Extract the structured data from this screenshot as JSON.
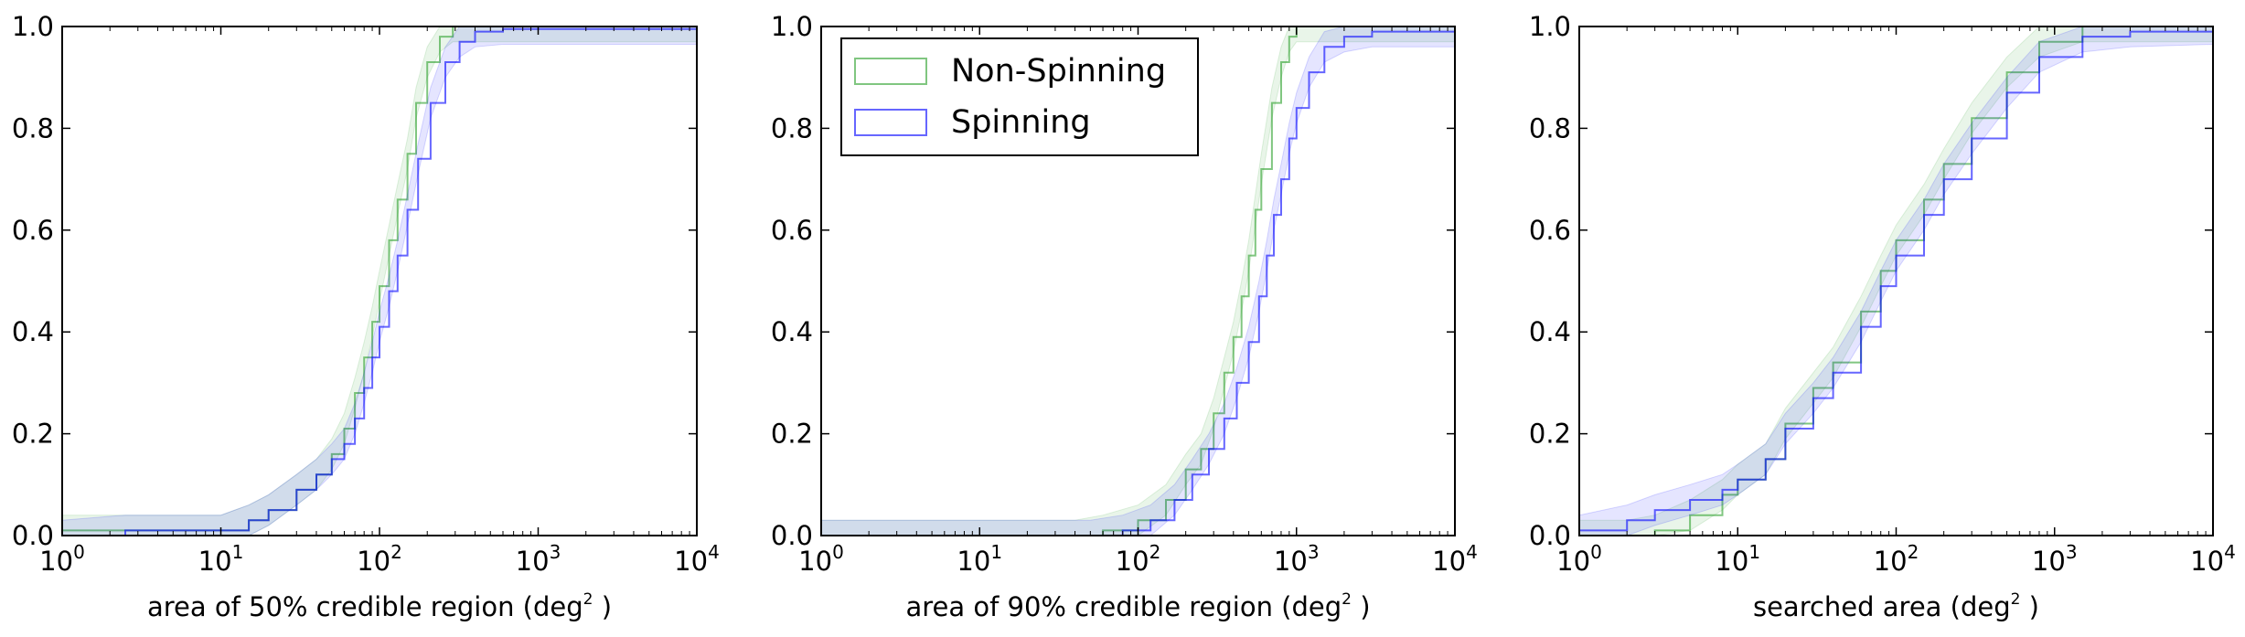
{
  "chart_data": [
    {
      "type": "line",
      "xscale": "log",
      "xlim": [
        1,
        10000
      ],
      "ylim": [
        0,
        1
      ],
      "xlabel": "area of 50% credible region (deg",
      "xlabel_sup": "2",
      "xlabel_end": " )",
      "xtick_base": "10",
      "xtick_exponents": [
        "0",
        "1",
        "2",
        "3",
        "4"
      ],
      "yticks": [
        "0.0",
        "0.2",
        "0.4",
        "0.6",
        "0.8",
        "1.0"
      ],
      "legend": false,
      "series": [
        {
          "name": "Non-Spinning",
          "color": "#2ca02c",
          "points": [
            [
              1,
              0.01
            ],
            [
              2.5,
              0.01
            ],
            [
              10,
              0.01
            ],
            [
              15,
              0.03
            ],
            [
              20,
              0.05
            ],
            [
              30,
              0.09
            ],
            [
              40,
              0.12
            ],
            [
              50,
              0.16
            ],
            [
              60,
              0.21
            ],
            [
              70,
              0.28
            ],
            [
              80,
              0.35
            ],
            [
              90,
              0.42
            ],
            [
              100,
              0.49
            ],
            [
              115,
              0.58
            ],
            [
              130,
              0.66
            ],
            [
              150,
              0.75
            ],
            [
              170,
              0.85
            ],
            [
              200,
              0.93
            ],
            [
              240,
              0.98
            ],
            [
              290,
              1.0
            ],
            [
              10000,
              1.0
            ]
          ]
        },
        {
          "name": "Spinning",
          "color": "#0000ff",
          "points": [
            [
              1,
              0.0
            ],
            [
              2.5,
              0.01
            ],
            [
              10,
              0.01
            ],
            [
              15,
              0.03
            ],
            [
              20,
              0.05
            ],
            [
              30,
              0.09
            ],
            [
              40,
              0.12
            ],
            [
              50,
              0.15
            ],
            [
              60,
              0.18
            ],
            [
              70,
              0.23
            ],
            [
              80,
              0.29
            ],
            [
              90,
              0.35
            ],
            [
              100,
              0.41
            ],
            [
              115,
              0.48
            ],
            [
              130,
              0.55
            ],
            [
              150,
              0.64
            ],
            [
              175,
              0.74
            ],
            [
              210,
              0.85
            ],
            [
              260,
              0.93
            ],
            [
              320,
              0.97
            ],
            [
              400,
              0.99
            ],
            [
              600,
              0.995
            ],
            [
              10000,
              0.995
            ]
          ]
        }
      ]
    },
    {
      "type": "line",
      "xscale": "log",
      "xlim": [
        1,
        10000
      ],
      "ylim": [
        0,
        1
      ],
      "xlabel": "area of 90% credible region (deg",
      "xlabel_sup": "2",
      "xlabel_end": " )",
      "xtick_base": "10",
      "xtick_exponents": [
        "0",
        "1",
        "2",
        "3",
        "4"
      ],
      "yticks": [
        "0.0",
        "0.2",
        "0.4",
        "0.6",
        "0.8",
        "1.0"
      ],
      "legend": true,
      "legend_position": "upper left",
      "series": [
        {
          "name": "Non-Spinning",
          "color": "#2ca02c",
          "points": [
            [
              1,
              0.0
            ],
            [
              10,
              0.0
            ],
            [
              40,
              0.0
            ],
            [
              60,
              0.01
            ],
            [
              100,
              0.03
            ],
            [
              150,
              0.07
            ],
            [
              200,
              0.13
            ],
            [
              250,
              0.17
            ],
            [
              300,
              0.24
            ],
            [
              350,
              0.32
            ],
            [
              400,
              0.39
            ],
            [
              450,
              0.47
            ],
            [
              500,
              0.55
            ],
            [
              550,
              0.64
            ],
            [
              600,
              0.72
            ],
            [
              700,
              0.85
            ],
            [
              800,
              0.93
            ],
            [
              900,
              0.98
            ],
            [
              1000,
              1.0
            ],
            [
              10000,
              1.0
            ]
          ]
        },
        {
          "name": "Spinning",
          "color": "#0000ff",
          "points": [
            [
              1,
              0.0
            ],
            [
              10,
              0.0
            ],
            [
              50,
              0.0
            ],
            [
              80,
              0.01
            ],
            [
              120,
              0.03
            ],
            [
              170,
              0.07
            ],
            [
              220,
              0.12
            ],
            [
              280,
              0.17
            ],
            [
              350,
              0.23
            ],
            [
              420,
              0.3
            ],
            [
              500,
              0.38
            ],
            [
              580,
              0.47
            ],
            [
              650,
              0.55
            ],
            [
              720,
              0.63
            ],
            [
              800,
              0.7
            ],
            [
              900,
              0.78
            ],
            [
              1000,
              0.84
            ],
            [
              1200,
              0.91
            ],
            [
              1500,
              0.96
            ],
            [
              2000,
              0.98
            ],
            [
              3000,
              0.99
            ],
            [
              10000,
              0.99
            ]
          ]
        }
      ]
    },
    {
      "type": "line",
      "xscale": "log",
      "xlim": [
        1,
        10000
      ],
      "ylim": [
        0,
        1
      ],
      "xlabel": "searched area (deg",
      "xlabel_sup": "2",
      "xlabel_end": " )",
      "xtick_base": "10",
      "xtick_exponents": [
        "0",
        "1",
        "2",
        "3",
        "4"
      ],
      "yticks": [
        "0.0",
        "0.2",
        "0.4",
        "0.6",
        "0.8",
        "1.0"
      ],
      "legend": false,
      "series": [
        {
          "name": "Non-Spinning",
          "color": "#2ca02c",
          "points": [
            [
              1,
              0.0
            ],
            [
              2,
              0.0
            ],
            [
              3,
              0.01
            ],
            [
              5,
              0.04
            ],
            [
              8,
              0.08
            ],
            [
              10,
              0.11
            ],
            [
              15,
              0.15
            ],
            [
              20,
              0.22
            ],
            [
              30,
              0.29
            ],
            [
              40,
              0.34
            ],
            [
              60,
              0.44
            ],
            [
              80,
              0.52
            ],
            [
              100,
              0.58
            ],
            [
              150,
              0.66
            ],
            [
              200,
              0.73
            ],
            [
              300,
              0.82
            ],
            [
              500,
              0.91
            ],
            [
              800,
              0.97
            ],
            [
              1500,
              1.0
            ],
            [
              10000,
              1.0
            ]
          ]
        },
        {
          "name": "Spinning",
          "color": "#0000ff",
          "points": [
            [
              1,
              0.01
            ],
            [
              2,
              0.03
            ],
            [
              3,
              0.05
            ],
            [
              5,
              0.07
            ],
            [
              8,
              0.09
            ],
            [
              10,
              0.11
            ],
            [
              15,
              0.15
            ],
            [
              20,
              0.21
            ],
            [
              30,
              0.27
            ],
            [
              40,
              0.32
            ],
            [
              60,
              0.41
            ],
            [
              80,
              0.49
            ],
            [
              100,
              0.55
            ],
            [
              150,
              0.63
            ],
            [
              200,
              0.7
            ],
            [
              300,
              0.78
            ],
            [
              500,
              0.87
            ],
            [
              800,
              0.94
            ],
            [
              1500,
              0.98
            ],
            [
              3000,
              0.99
            ],
            [
              10000,
              0.995
            ]
          ]
        }
      ]
    }
  ]
}
